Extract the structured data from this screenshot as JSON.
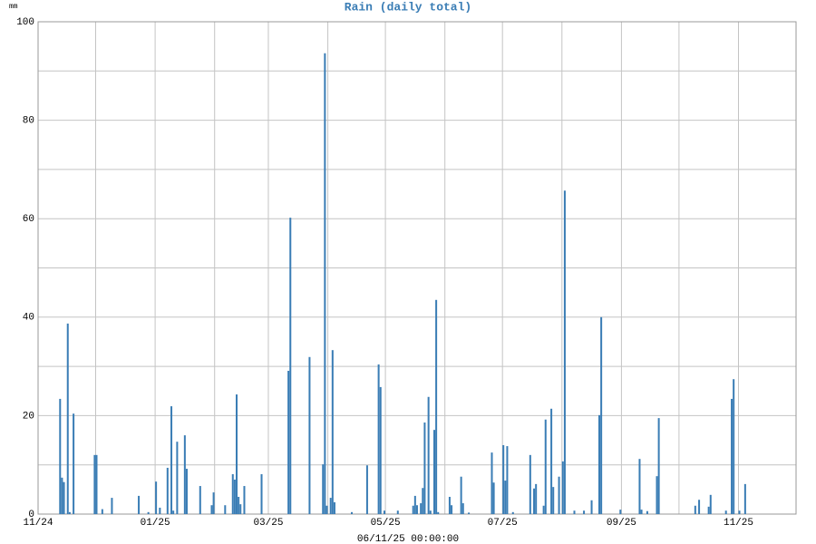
{
  "chart_data": {
    "type": "bar",
    "title": "Rain (daily total)",
    "ylabel": "mm",
    "xlabel": "06/11/25 00:00:00",
    "color": "#3a7db5",
    "grid": true,
    "xlim": [
      0,
      395
    ],
    "xticks": [
      {
        "value": 0,
        "label": "11/24"
      },
      {
        "value": 61,
        "label": "01/25"
      },
      {
        "value": 120,
        "label": "03/25"
      },
      {
        "value": 181,
        "label": "05/25"
      },
      {
        "value": 242,
        "label": "07/25"
      },
      {
        "value": 304,
        "label": "09/25"
      },
      {
        "value": 365,
        "label": "11/25"
      }
    ],
    "xgrid_minor": [
      30,
      92,
      151,
      212,
      273,
      334
    ],
    "ylim": [
      0,
      100
    ],
    "yticks": [
      0,
      20,
      40,
      60,
      80,
      100
    ],
    "ygrid_minor": [
      10,
      30,
      50,
      70,
      90
    ],
    "x": [
      11,
      12,
      13,
      15,
      16,
      18,
      29,
      30,
      33,
      38,
      52,
      57,
      61,
      63,
      67,
      69,
      70,
      72,
      76,
      77,
      84,
      90,
      91,
      97,
      101,
      102,
      103,
      104,
      105,
      107,
      116,
      130,
      131,
      141,
      148,
      149,
      150,
      152,
      153,
      154,
      163,
      171,
      177,
      178,
      180,
      187,
      195,
      196,
      197,
      199,
      200,
      201,
      203,
      204,
      206,
      207,
      208,
      214,
      215,
      220,
      221,
      224,
      236,
      237,
      242,
      243,
      244,
      247,
      256,
      258,
      259,
      263,
      264,
      267,
      268,
      271,
      273,
      274,
      279,
      284,
      288,
      292,
      293,
      303,
      313,
      314,
      317,
      322,
      323,
      342,
      344,
      349,
      350,
      358,
      361,
      362,
      365,
      368
    ],
    "values": [
      23.4,
      7.4,
      6.5,
      38.7,
      0.4,
      20.4,
      12,
      12,
      1,
      3.3,
      3.7,
      0.4,
      6.6,
      1.3,
      9.4,
      21.9,
      0.7,
      14.7,
      16,
      9.2,
      5.7,
      1.8,
      4.4,
      1.8,
      8.1,
      7,
      24.3,
      3.5,
      2,
      5.7,
      8.1,
      29.1,
      60.2,
      31.9,
      10.1,
      93.6,
      1.7,
      3.3,
      33.3,
      2.4,
      0.4,
      9.9,
      30.4,
      25.8,
      0.7,
      0.7,
      1.7,
      3.7,
      1.8,
      2.2,
      5.3,
      18.6,
      23.8,
      0.7,
      17.1,
      43.5,
      0.4,
      3.5,
      1.8,
      7.6,
      2.2,
      0.3,
      12.5,
      6.4,
      14,
      6.8,
      13.8,
      0.4,
      12,
      5.2,
      6.1,
      1.7,
      19.2,
      21.4,
      5.5,
      7.6,
      10.7,
      65.7,
      0.7,
      0.7,
      2.8,
      20.1,
      40,
      0.9,
      11.2,
      0.9,
      0.6,
      7.7,
      19.5,
      1.7,
      2.9,
      1.5,
      3.9,
      0.7,
      23.4,
      27.4,
      0.7,
      6.1
    ]
  }
}
